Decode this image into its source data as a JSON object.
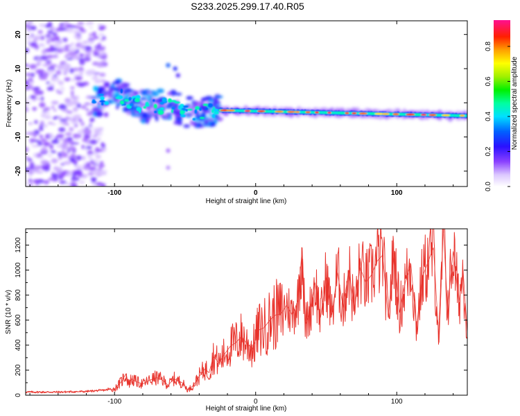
{
  "title": "S233.2025.299.17.40.R05",
  "colors": {
    "snr_line": "#e8322b",
    "axis": "#000000",
    "background": "#ffffff"
  },
  "chart_data": [
    {
      "type": "heatmap",
      "name": "spectrogram",
      "xlabel": "Height of straight line (km)",
      "ylabel": "Frequency (Hz)",
      "xlim": [
        -163,
        150
      ],
      "ylim": [
        -24.5,
        24
      ],
      "xticks": [
        -100,
        0,
        100
      ],
      "yticks": [
        -20,
        -10,
        0,
        10,
        20
      ],
      "colorbar": {
        "label": "Normalized spectral amplitude",
        "range": [
          0,
          0.95
        ],
        "ticks": [
          "0.0",
          "0.2",
          "0.4",
          "0.6",
          "0.8"
        ],
        "tick_values": [
          0.0,
          0.2,
          0.4,
          0.6,
          0.8
        ]
      },
      "features": [
        {
          "x_range": [
            -163,
            -107
          ],
          "y_range": [
            -24.5,
            24
          ],
          "amplitude": 0.12,
          "note": "scattered low-amplitude noise"
        },
        {
          "x_range": [
            -115,
            -25
          ],
          "center_freq": [
            0,
            2,
            -1,
            -1,
            -3,
            -2
          ],
          "amplitude": 0.35,
          "note": "irregular signal onset"
        },
        {
          "x_range": [
            -25,
            150
          ],
          "center_freq": -2.2,
          "end_freq": -3.8,
          "amplitude": 0.9,
          "note": "narrow dominant tone"
        }
      ]
    },
    {
      "type": "line",
      "name": "snr",
      "xlabel": "Height of straight line (km)",
      "ylabel": "SNR (10 * v/v)",
      "xlim": [
        -163,
        150
      ],
      "ylim": [
        0,
        1330
      ],
      "xticks": [
        -100,
        0,
        100
      ],
      "yticks": [
        0,
        200,
        400,
        600,
        800,
        1000,
        1200
      ],
      "series": [
        {
          "name": "SNR",
          "x": [
            -163,
            -140,
            -120,
            -108,
            -100,
            -95,
            -92,
            -90,
            -88,
            -85,
            -80,
            -75,
            -70,
            -66,
            -62,
            -58,
            -52,
            -48,
            -44,
            -40,
            -36,
            -33,
            -30,
            -26,
            -22,
            -18,
            -14,
            -10,
            -6,
            -2,
            2,
            6,
            10,
            14,
            18,
            22,
            26,
            30,
            33,
            35,
            38,
            42,
            46,
            50,
            54,
            58,
            62,
            66,
            70,
            74,
            78,
            82,
            86,
            90,
            94,
            98,
            102,
            106,
            110,
            114,
            118,
            122,
            126,
            130,
            133,
            136,
            140,
            144,
            147,
            150
          ],
          "values": [
            25,
            25,
            30,
            40,
            50,
            110,
            170,
            90,
            130,
            110,
            90,
            120,
            140,
            120,
            80,
            130,
            100,
            40,
            80,
            150,
            210,
            180,
            310,
            260,
            330,
            390,
            420,
            470,
            410,
            370,
            520,
            540,
            600,
            640,
            650,
            720,
            640,
            760,
            1180,
            560,
            650,
            900,
            620,
            940,
            640,
            980,
            700,
            1000,
            680,
            1020,
            900,
            960,
            1070,
            1120,
            620,
            1140,
            660,
            900,
            1050,
            540,
            940,
            1060,
            1180,
            420,
            1330,
            700,
            1150,
            740,
            1000,
            500
          ]
        }
      ]
    }
  ]
}
